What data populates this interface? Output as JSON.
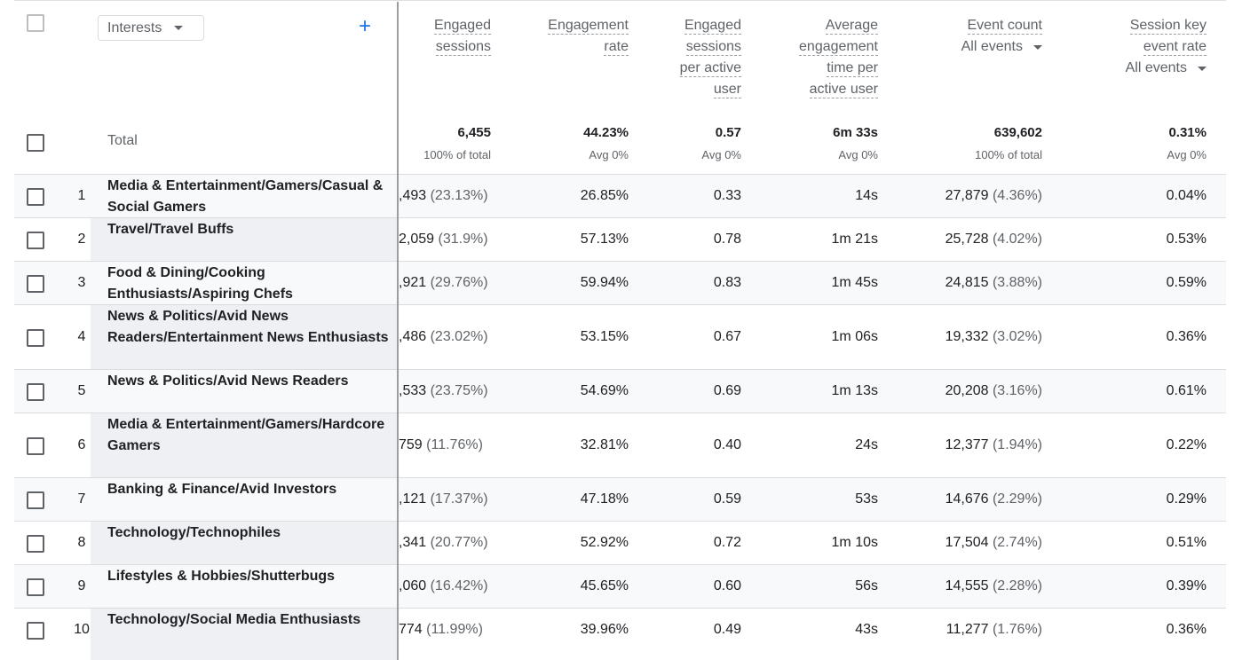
{
  "dimension": {
    "select_label": "Interests",
    "add_icon": "plus-icon",
    "total_label": "Total"
  },
  "columns": [
    {
      "key": "engaged_sessions",
      "lines": [
        "Engaged",
        "sessions"
      ],
      "total": "6,455",
      "total_sub": "100% of total"
    },
    {
      "key": "engagement_rate",
      "lines": [
        "Engagement",
        "rate"
      ],
      "total": "44.23%",
      "total_sub": "Avg 0%"
    },
    {
      "key": "engaged_per_user",
      "lines": [
        "Engaged",
        "sessions",
        "per active",
        "user"
      ],
      "total": "0.57",
      "total_sub": "Avg 0%"
    },
    {
      "key": "avg_engagement",
      "lines": [
        "Average",
        "engagement",
        "time per",
        "active user"
      ],
      "total": "6m 33s",
      "total_sub": "Avg 0%"
    },
    {
      "key": "event_count",
      "lines": [
        "Event count"
      ],
      "filter": "All events",
      "total": "639,602",
      "total_sub": "100% of total"
    },
    {
      "key": "session_key_rate",
      "lines": [
        "Session key",
        "event rate"
      ],
      "filter": "All events",
      "total": "0.31%",
      "total_sub": "Avg 0%"
    }
  ],
  "rows": [
    {
      "num": "1",
      "name": "Media & Entertainment/Gamers/Casual & Social Gamers",
      "engaged": ",493",
      "engaged_pct": "(23.13%)",
      "rate": "26.85%",
      "per_user": "0.33",
      "avg_time": "14s",
      "events": "27,879",
      "events_pct": "(4.36%)",
      "key_rate": "0.04%"
    },
    {
      "num": "2",
      "name": "Travel/Travel Buffs",
      "engaged": "2,059",
      "engaged_pct": "(31.9%)",
      "rate": "57.13%",
      "per_user": "0.78",
      "avg_time": "1m 21s",
      "events": "25,728",
      "events_pct": "(4.02%)",
      "key_rate": "0.53%"
    },
    {
      "num": "3",
      "name": "Food & Dining/Cooking Enthusiasts/Aspiring Chefs",
      "engaged": ",921",
      "engaged_pct": "(29.76%)",
      "rate": "59.94%",
      "per_user": "0.83",
      "avg_time": "1m 45s",
      "events": "24,815",
      "events_pct": "(3.88%)",
      "key_rate": "0.59%"
    },
    {
      "num": "4",
      "name": "News & Politics/Avid News Readers/Entertainment News Enthusiasts",
      "engaged": ",486",
      "engaged_pct": "(23.02%)",
      "rate": "53.15%",
      "per_user": "0.67",
      "avg_time": "1m 06s",
      "events": "19,332",
      "events_pct": "(3.02%)",
      "key_rate": "0.36%"
    },
    {
      "num": "5",
      "name": "News & Politics/Avid News Readers",
      "engaged": ",533",
      "engaged_pct": "(23.75%)",
      "rate": "54.69%",
      "per_user": "0.69",
      "avg_time": "1m 13s",
      "events": "20,208",
      "events_pct": "(3.16%)",
      "key_rate": "0.61%"
    },
    {
      "num": "6",
      "name": "Media & Entertainment/Gamers/Hardcore Gamers",
      "engaged": "759",
      "engaged_pct": "(11.76%)",
      "rate": "32.81%",
      "per_user": "0.40",
      "avg_time": "24s",
      "events": "12,377",
      "events_pct": "(1.94%)",
      "key_rate": "0.22%"
    },
    {
      "num": "7",
      "name": "Banking & Finance/Avid Investors",
      "engaged": ",121",
      "engaged_pct": "(17.37%)",
      "rate": "47.18%",
      "per_user": "0.59",
      "avg_time": "53s",
      "events": "14,676",
      "events_pct": "(2.29%)",
      "key_rate": "0.29%"
    },
    {
      "num": "8",
      "name": "Technology/Technophiles",
      "engaged": ",341",
      "engaged_pct": "(20.77%)",
      "rate": "52.92%",
      "per_user": "0.72",
      "avg_time": "1m 10s",
      "events": "17,504",
      "events_pct": "(2.74%)",
      "key_rate": "0.51%"
    },
    {
      "num": "9",
      "name": "Lifestyles & Hobbies/Shutterbugs",
      "engaged": ",060",
      "engaged_pct": "(16.42%)",
      "rate": "45.65%",
      "per_user": "0.60",
      "avg_time": "56s",
      "events": "14,555",
      "events_pct": "(2.28%)",
      "key_rate": "0.39%"
    },
    {
      "num": "10",
      "name": "Technology/Social Media Enthusiasts",
      "engaged": "774",
      "engaged_pct": "(11.99%)",
      "rate": "39.96%",
      "per_user": "0.49",
      "avg_time": "43s",
      "events": "11,277",
      "events_pct": "(1.76%)",
      "key_rate": "0.36%"
    }
  ]
}
